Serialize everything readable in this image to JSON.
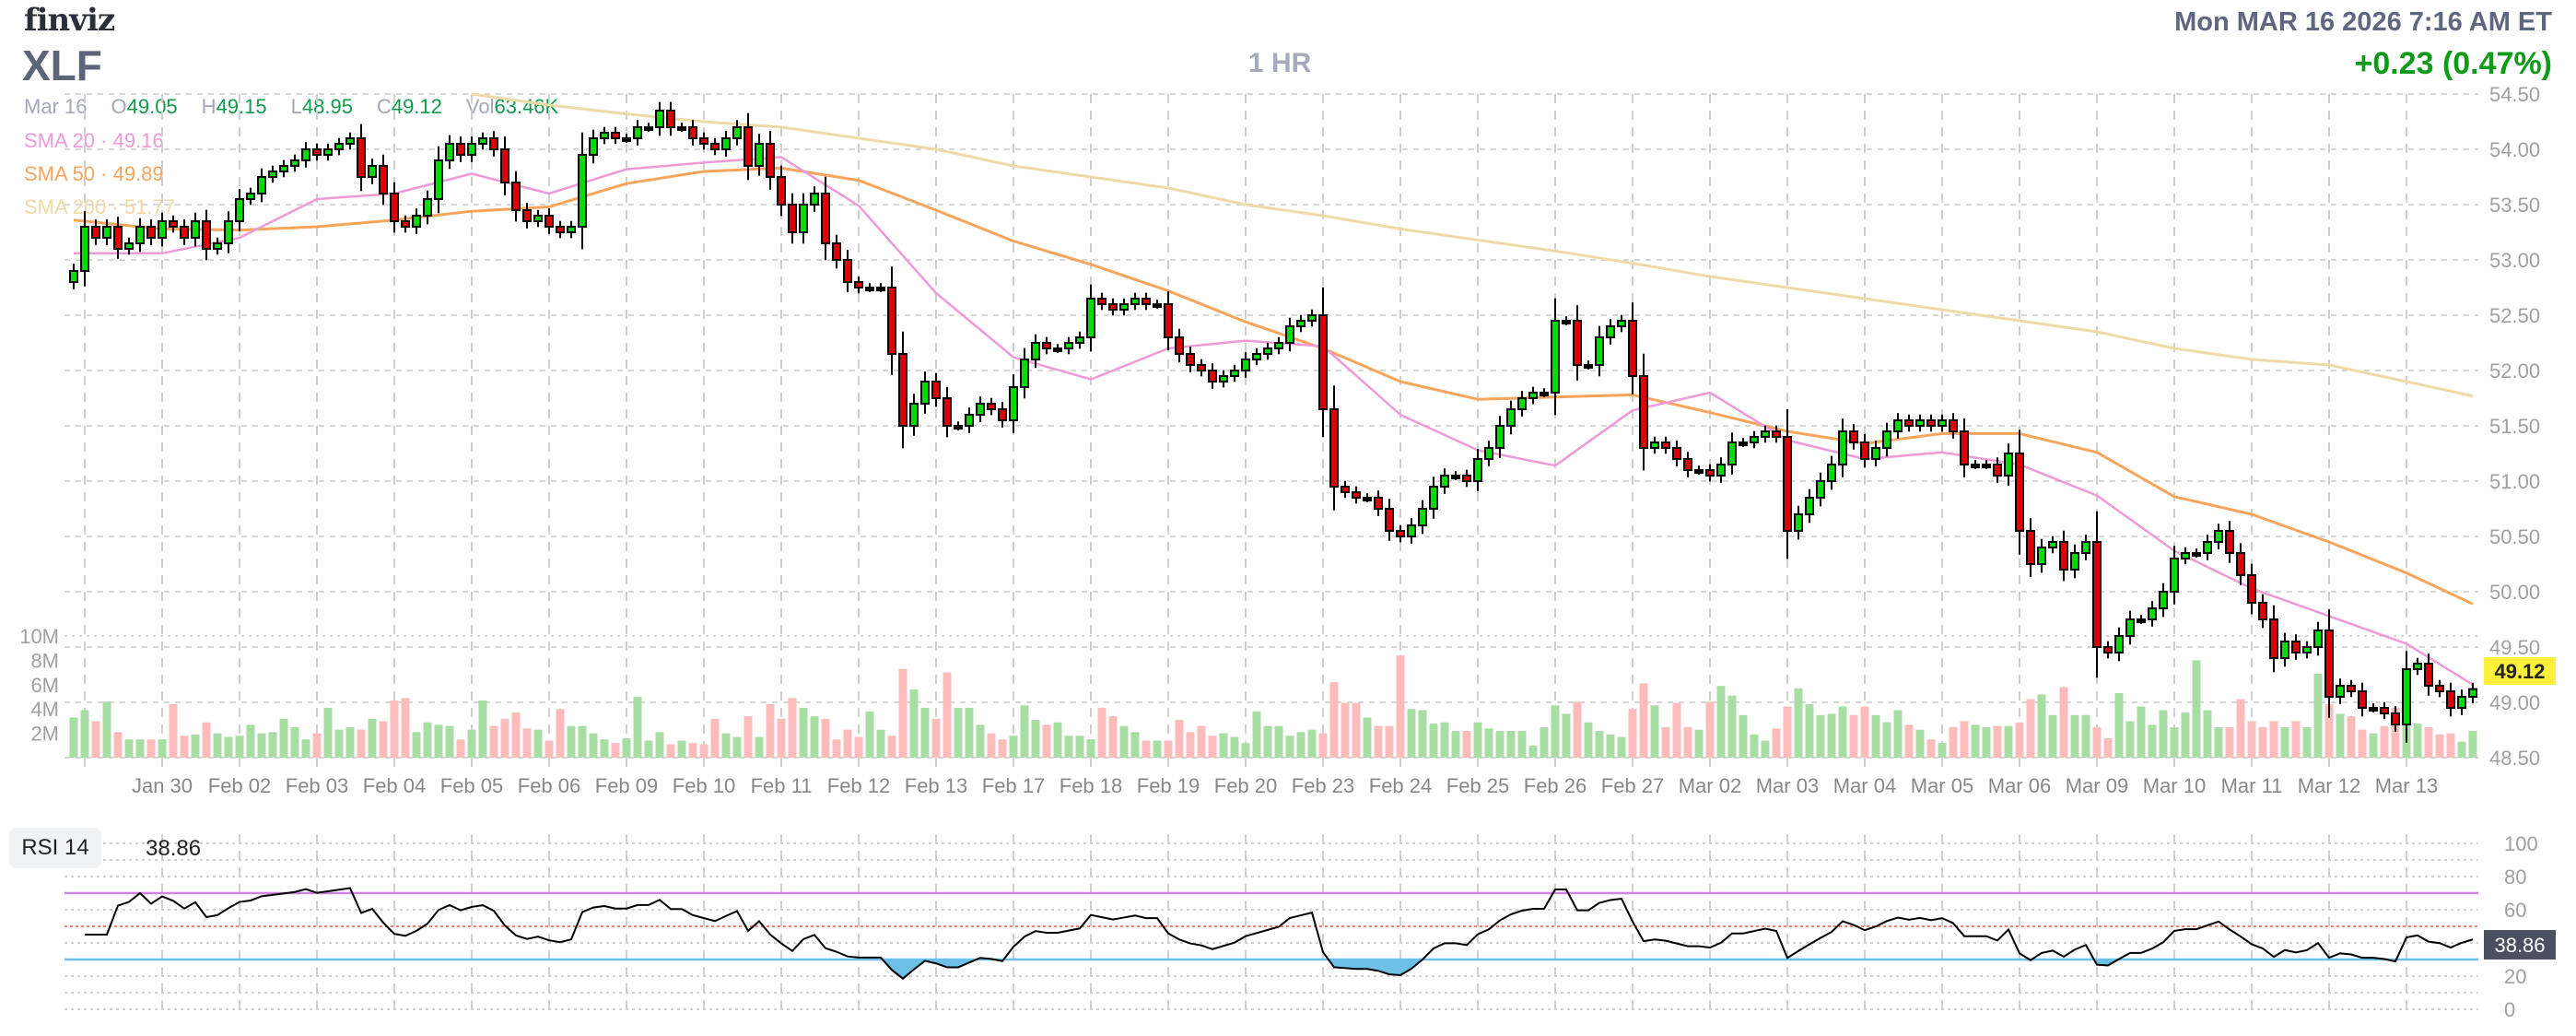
{
  "header": {
    "logo": "finviz",
    "ticker": "XLF",
    "interval": "1 HR",
    "datetime": "Mon MAR 16 2026 7:16 AM ET",
    "change": "+0.23 (0.47%)",
    "date": "Mar 16",
    "ohlc": {
      "o_label": "O",
      "o": "49.05",
      "h_label": "H",
      "h": "49.15",
      "l_label": "L",
      "l": "48.95",
      "c_label": "C",
      "c": "49.12",
      "vol_label": "Vol",
      "vol": "63.46K"
    },
    "sma20": "SMA 20 · 49.16",
    "sma50": "SMA 50 · 49.89",
    "sma200": "SMA 200 · 51.77"
  },
  "rsi_panel": {
    "label": "RSI 14",
    "value": "38.86"
  },
  "colors": {
    "up": "#00dd00",
    "down": "#e00000",
    "vol_up": "#a8dea3",
    "vol_down": "#fcbcbc",
    "sma20": "#ef9ad8",
    "sma50": "#f7a55c",
    "sma200": "#efd9a6",
    "rsi_ob": "#cf84e0",
    "rsi_os": "#6cc0e8",
    "rsi_mid": "#f58080",
    "last_price_bg": "#fff03a",
    "rsi_value_bg": "#4a5060"
  },
  "chart_data": {
    "type": "candlestick",
    "title": "XLF 1 HR",
    "price_axis": {
      "min": 48.5,
      "max": 54.5,
      "ticks": [
        "54.50",
        "54.00",
        "53.50",
        "53.00",
        "52.50",
        "52.00",
        "51.50",
        "51.00",
        "50.50",
        "50.00",
        "49.50",
        "49.00",
        "48.50"
      ]
    },
    "volume_axis": {
      "unit": "M",
      "max": 10,
      "ticks": [
        {
          "v": 10,
          "t": "10M"
        },
        {
          "v": 8,
          "t": "8M"
        },
        {
          "v": 6,
          "t": "6M"
        },
        {
          "v": 4,
          "t": "4M"
        },
        {
          "v": 2,
          "t": "2M"
        }
      ]
    },
    "last_price": "49.12",
    "first_open": 52.8,
    "days": [
      {
        "label": "",
        "closes": [
          52.9,
          53.3,
          53.2,
          53.3,
          53.1,
          53.15,
          53.3,
          53.2
        ],
        "volumes": [
          3.3,
          3.9,
          3.0,
          4.6,
          2.1,
          1.5,
          1.5,
          1.5
        ]
      },
      {
        "label": "Jan 30",
        "closes": [
          53.35,
          53.3,
          53.2,
          53.35,
          53.1,
          53.15,
          53.35
        ],
        "volumes": [
          1.5,
          4.4,
          1.8,
          1.9,
          2.9,
          2.0,
          1.7
        ]
      },
      {
        "label": "Feb 02",
        "closes": [
          53.55,
          53.6,
          53.75,
          53.8,
          53.85,
          53.9,
          54.0
        ],
        "volumes": [
          1.8,
          2.7,
          2.0,
          2.1,
          3.2,
          2.5,
          1.5
        ]
      },
      {
        "label": "Feb 03",
        "closes": [
          53.95,
          54.0,
          54.05,
          54.1,
          53.75,
          53.85,
          53.6
        ],
        "volumes": [
          2.0,
          4.1,
          2.3,
          2.5,
          2.3,
          3.2,
          3.0
        ]
      },
      {
        "label": "Feb 04",
        "closes": [
          53.35,
          53.3,
          53.4,
          53.55,
          53.9,
          54.05,
          53.95
        ],
        "volumes": [
          4.7,
          4.9,
          2.1,
          2.9,
          2.7,
          2.6,
          1.5
        ]
      },
      {
        "label": "Feb 05",
        "closes": [
          54.05,
          54.1,
          54.0,
          53.7,
          53.45,
          53.35,
          53.4
        ],
        "volumes": [
          2.3,
          4.7,
          2.6,
          3.2,
          3.7,
          2.4,
          2.3
        ]
      },
      {
        "label": "Feb 06",
        "closes": [
          53.3,
          53.25,
          53.3,
          53.95,
          54.1,
          54.15,
          54.1
        ],
        "volumes": [
          1.4,
          4.0,
          2.6,
          2.6,
          2.0,
          1.5,
          1.2
        ]
      },
      {
        "label": "Feb 09",
        "closes": [
          54.1,
          54.2,
          54.2,
          54.35,
          54.2,
          54.2,
          54.1
        ],
        "volumes": [
          1.6,
          5.0,
          1.4,
          2.1,
          1.1,
          1.4,
          1.2
        ]
      },
      {
        "label": "Feb 10",
        "closes": [
          54.05,
          54.0,
          54.1,
          54.2,
          53.85,
          54.05,
          53.75
        ],
        "volumes": [
          1.1,
          3.2,
          2.0,
          1.7,
          3.4,
          1.7,
          4.4
        ]
      },
      {
        "label": "Feb 11",
        "closes": [
          53.5,
          53.25,
          53.5,
          53.6,
          53.15,
          53.0,
          52.8
        ],
        "volumes": [
          3.2,
          4.9,
          4.1,
          3.4,
          3.2,
          1.5,
          2.3
        ]
      },
      {
        "label": "Feb 12",
        "closes": [
          52.75,
          52.75,
          52.75,
          52.15,
          51.5,
          51.7,
          51.9
        ],
        "volumes": [
          1.7,
          3.8,
          2.3,
          1.8,
          7.3,
          5.6,
          4.1
        ]
      },
      {
        "label": "Feb 13",
        "closes": [
          51.75,
          51.5,
          51.5,
          51.6,
          51.7,
          51.65,
          51.55
        ],
        "volumes": [
          3.2,
          7.0,
          4.1,
          4.1,
          2.7,
          2.0,
          1.5
        ]
      },
      {
        "label": "Feb 17",
        "closes": [
          51.85,
          52.1,
          52.25,
          52.2,
          52.2,
          52.25,
          52.3
        ],
        "volumes": [
          1.8,
          4.3,
          3.1,
          2.7,
          2.9,
          1.8,
          1.8
        ]
      },
      {
        "label": "Feb 18",
        "closes": [
          52.65,
          52.6,
          52.55,
          52.6,
          52.65,
          52.6,
          52.6
        ],
        "volumes": [
          1.5,
          4.1,
          3.4,
          2.6,
          2.1,
          1.4,
          1.4
        ]
      },
      {
        "label": "Feb 19",
        "closes": [
          52.3,
          52.15,
          52.05,
          52.0,
          51.9,
          51.95,
          52.0
        ],
        "volumes": [
          1.4,
          3.1,
          2.1,
          2.6,
          1.8,
          2.0,
          1.7
        ]
      },
      {
        "label": "Feb 20",
        "closes": [
          52.1,
          52.15,
          52.2,
          52.25,
          52.4,
          52.45,
          52.5
        ],
        "volumes": [
          1.2,
          3.8,
          2.6,
          2.6,
          1.8,
          2.1,
          2.3
        ]
      },
      {
        "label": "Feb 23",
        "closes": [
          51.65,
          50.95,
          50.9,
          50.85,
          50.85,
          50.75,
          50.55
        ],
        "volumes": [
          2.0,
          6.2,
          4.5,
          4.5,
          3.3,
          2.6,
          2.6
        ]
      },
      {
        "label": "Feb 24",
        "closes": [
          50.5,
          50.6,
          50.75,
          50.95,
          51.05,
          51.05,
          51.0
        ],
        "volumes": [
          8.4,
          4.0,
          3.9,
          2.8,
          2.9,
          2.2,
          2.2
        ]
      },
      {
        "label": "Feb 25",
        "closes": [
          51.2,
          51.3,
          51.5,
          51.65,
          51.75,
          51.8,
          51.8
        ],
        "volumes": [
          2.9,
          2.4,
          2.2,
          2.2,
          2.2,
          1.0,
          2.5
        ]
      },
      {
        "label": "Feb 26",
        "closes": [
          52.45,
          52.45,
          52.05,
          52.05,
          52.3,
          52.4,
          52.45
        ],
        "volumes": [
          4.3,
          3.6,
          4.6,
          2.9,
          2.2,
          1.9,
          1.7
        ]
      },
      {
        "label": "Feb 27",
        "closes": [
          51.95,
          51.3,
          51.35,
          51.3,
          51.2,
          51.1,
          51.1
        ],
        "volumes": [
          4.0,
          6.1,
          4.3,
          2.5,
          4.5,
          2.5,
          2.3
        ]
      },
      {
        "label": "Mar 02",
        "closes": [
          51.05,
          51.15,
          51.35,
          51.35,
          51.4,
          51.45,
          51.4
        ],
        "volumes": [
          4.6,
          5.9,
          5.1,
          3.5,
          1.9,
          1.4,
          2.4
        ]
      },
      {
        "label": "Mar 03",
        "closes": [
          50.55,
          50.7,
          50.85,
          51.0,
          51.15,
          51.45,
          51.35
        ],
        "volumes": [
          4.2,
          5.7,
          4.4,
          3.5,
          3.6,
          4.2,
          3.5
        ]
      },
      {
        "label": "Mar 04",
        "closes": [
          51.2,
          51.3,
          51.45,
          51.55,
          51.5,
          51.55,
          51.5
        ],
        "volumes": [
          4.2,
          3.5,
          2.9,
          3.9,
          2.7,
          2.3,
          1.5
        ]
      },
      {
        "label": "Mar 05",
        "closes": [
          51.55,
          51.45,
          51.15,
          51.15,
          51.15,
          51.05,
          51.25
        ],
        "volumes": [
          1.2,
          2.5,
          3.0,
          2.7,
          2.5,
          2.6,
          2.6
        ]
      },
      {
        "label": "Mar 06",
        "closes": [
          50.55,
          50.25,
          50.4,
          50.45,
          50.2,
          50.35,
          50.45
        ],
        "volumes": [
          2.9,
          4.8,
          5.2,
          3.5,
          5.8,
          3.5,
          3.5
        ]
      },
      {
        "label": "Mar 09",
        "closes": [
          49.5,
          49.45,
          49.6,
          49.75,
          49.75,
          49.85,
          50.0
        ],
        "volumes": [
          2.5,
          1.6,
          5.3,
          3.0,
          4.2,
          2.7,
          3.9
        ]
      },
      {
        "label": "Mar 10",
        "closes": [
          50.3,
          50.35,
          50.35,
          50.45,
          50.55,
          50.35,
          50.15
        ],
        "volumes": [
          2.5,
          3.7,
          8.0,
          3.9,
          2.5,
          2.5,
          4.8
        ]
      },
      {
        "label": "Mar 11",
        "closes": [
          49.9,
          49.75,
          49.4,
          49.55,
          49.45,
          49.5,
          49.65
        ],
        "volumes": [
          3.0,
          2.5,
          3.0,
          2.5,
          3.0,
          2.5,
          6.9
        ]
      },
      {
        "label": "Mar 12",
        "closes": [
          49.05,
          49.15,
          49.1,
          48.95,
          48.95,
          48.9,
          48.8
        ],
        "volumes": [
          4.4,
          3.6,
          3.4,
          2.3,
          2.0,
          2.6,
          4.1
        ]
      },
      {
        "label": "Mar 13",
        "closes": [
          49.3,
          49.35,
          49.15,
          49.1,
          48.95,
          49.05
        ],
        "volumes": [
          2.9,
          2.8,
          2.5,
          1.9,
          2.0,
          1.3
        ]
      },
      {
        "label": "",
        "closes": [
          49.12
        ],
        "volumes": [
          2.2
        ]
      }
    ],
    "sma": {
      "sma20": [
        53.06,
        53.06,
        53.2,
        53.55,
        53.6,
        53.78,
        53.6,
        53.82,
        53.88,
        53.93,
        53.49,
        52.7,
        52.12,
        51.92,
        52.2,
        52.27,
        52.22,
        51.6,
        51.28,
        51.14,
        51.64,
        51.8,
        51.37,
        51.2,
        51.26,
        51.15,
        50.87,
        50.37,
        50.03,
        49.78,
        49.53,
        49.16
      ],
      "sma50": [
        53.36,
        53.28,
        53.27,
        53.3,
        53.36,
        53.44,
        53.48,
        53.69,
        53.8,
        53.83,
        53.72,
        53.45,
        53.17,
        52.96,
        52.72,
        52.44,
        52.2,
        51.9,
        51.74,
        51.76,
        51.78,
        51.62,
        51.45,
        51.34,
        51.43,
        51.43,
        51.26,
        50.86,
        50.7,
        50.45,
        50.17,
        49.89
      ],
      "sma200": [
        null,
        null,
        null,
        null,
        null,
        54.5,
        54.4,
        54.32,
        54.25,
        54.2,
        54.1,
        54.0,
        53.85,
        53.75,
        53.65,
        53.5,
        53.4,
        53.28,
        53.18,
        53.08,
        52.97,
        52.85,
        52.75,
        52.65,
        52.55,
        52.45,
        52.35,
        52.2,
        52.1,
        52.05,
        51.9,
        51.77
      ]
    },
    "rsi": {
      "period": 14,
      "ticks": [
        {
          "v": 100,
          "t": "100"
        },
        {
          "v": 80,
          "t": "80"
        },
        {
          "v": 60,
          "t": "60"
        },
        {
          "v": 20,
          "t": "20"
        },
        {
          "v": 0,
          "t": "0"
        }
      ],
      "overbought": 70,
      "midline": 50,
      "oversold": 30,
      "min": 0,
      "max": 100
    }
  }
}
